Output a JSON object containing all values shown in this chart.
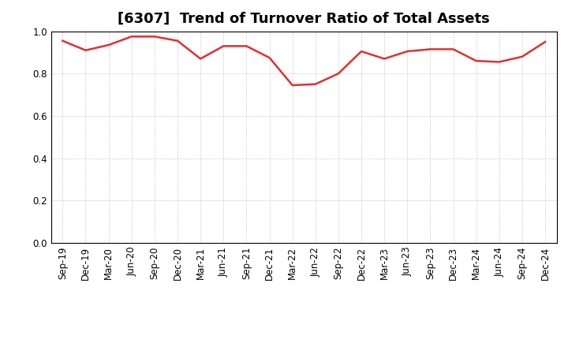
{
  "title": "[6307]  Trend of Turnover Ratio of Total Assets",
  "x_labels": [
    "Sep-19",
    "Dec-19",
    "Mar-20",
    "Jun-20",
    "Sep-20",
    "Dec-20",
    "Mar-21",
    "Jun-21",
    "Sep-21",
    "Dec-21",
    "Mar-22",
    "Jun-22",
    "Sep-22",
    "Dec-22",
    "Mar-23",
    "Jun-23",
    "Sep-23",
    "Dec-23",
    "Mar-24",
    "Jun-24",
    "Sep-24",
    "Dec-24"
  ],
  "values": [
    0.955,
    0.91,
    0.935,
    0.975,
    0.975,
    0.955,
    0.87,
    0.93,
    0.93,
    0.875,
    0.745,
    0.75,
    0.8,
    0.905,
    0.87,
    0.905,
    0.915,
    0.915,
    0.86,
    0.855,
    0.88,
    0.95
  ],
  "line_color": "#e03030",
  "line_width": 1.8,
  "ylim": [
    0.0,
    1.0
  ],
  "yticks": [
    0.0,
    0.2,
    0.4,
    0.6,
    0.8,
    1.0
  ],
  "background_color": "#ffffff",
  "grid_color": "#999999",
  "title_fontsize": 13,
  "tick_fontsize": 8.5
}
